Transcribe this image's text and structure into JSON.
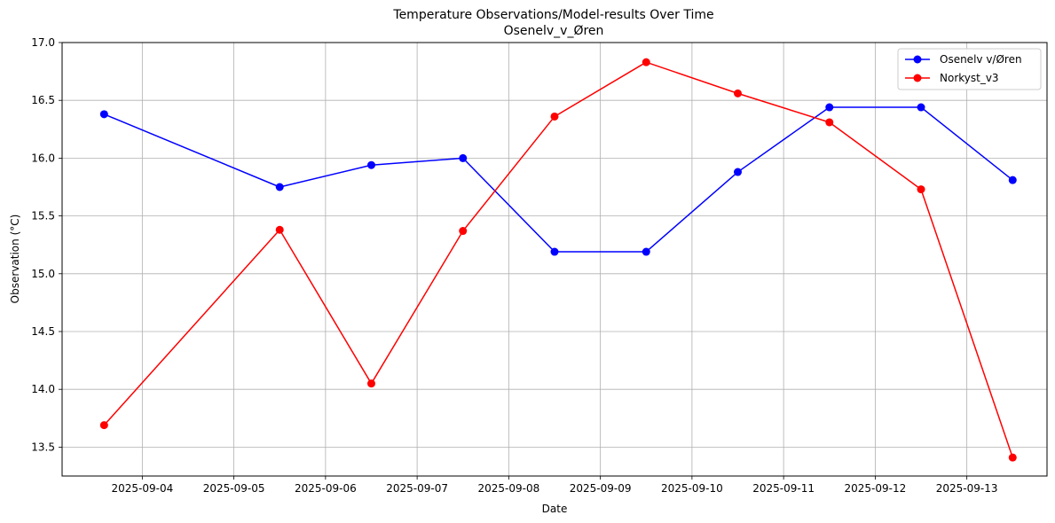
{
  "chart_data": {
    "type": "line",
    "title": "Temperature Observations/Model-results Over Time",
    "subtitle": "Osenelv_v_Øren",
    "xlabel": "Date",
    "ylabel": "Observation (°C)",
    "x_ticks": [
      "2025-09-04",
      "2025-09-05",
      "2025-09-06",
      "2025-09-07",
      "2025-09-08",
      "2025-09-09",
      "2025-09-10",
      "2025-09-11",
      "2025-09-12",
      "2025-09-13"
    ],
    "y_ticks": [
      "13.5",
      "14.0",
      "14.5",
      "15.0",
      "15.5",
      "16.0",
      "16.5",
      "17.0"
    ],
    "ylim": [
      13.25,
      17.0
    ],
    "xlim": [
      "2025-09-03 03:00",
      "2025-09-13 21:00"
    ],
    "grid": true,
    "legend_position": "top-right",
    "series": [
      {
        "name": "Osenelv v/Øren",
        "color": "#0000ff",
        "marker": "circle",
        "x": [
          "2025-09-03 14:00",
          "2025-09-05 12:00",
          "2025-09-06 12:00",
          "2025-09-07 12:00",
          "2025-09-08 12:00",
          "2025-09-09 12:00",
          "2025-09-10 12:00",
          "2025-09-11 12:00",
          "2025-09-12 12:00",
          "2025-09-13 12:00"
        ],
        "y": [
          16.38,
          15.75,
          15.94,
          16.0,
          15.19,
          15.19,
          15.88,
          16.44,
          16.44,
          15.81
        ]
      },
      {
        "name": "Norkyst_v3",
        "color": "#ff0000",
        "marker": "circle",
        "x": [
          "2025-09-03 14:00",
          "2025-09-05 12:00",
          "2025-09-06 12:00",
          "2025-09-07 12:00",
          "2025-09-08 12:00",
          "2025-09-09 12:00",
          "2025-09-10 12:00",
          "2025-09-11 12:00",
          "2025-09-12 12:00",
          "2025-09-13 12:00"
        ],
        "y": [
          13.69,
          15.38,
          14.05,
          15.37,
          16.36,
          16.83,
          16.56,
          16.31,
          15.73,
          13.41
        ]
      }
    ]
  }
}
